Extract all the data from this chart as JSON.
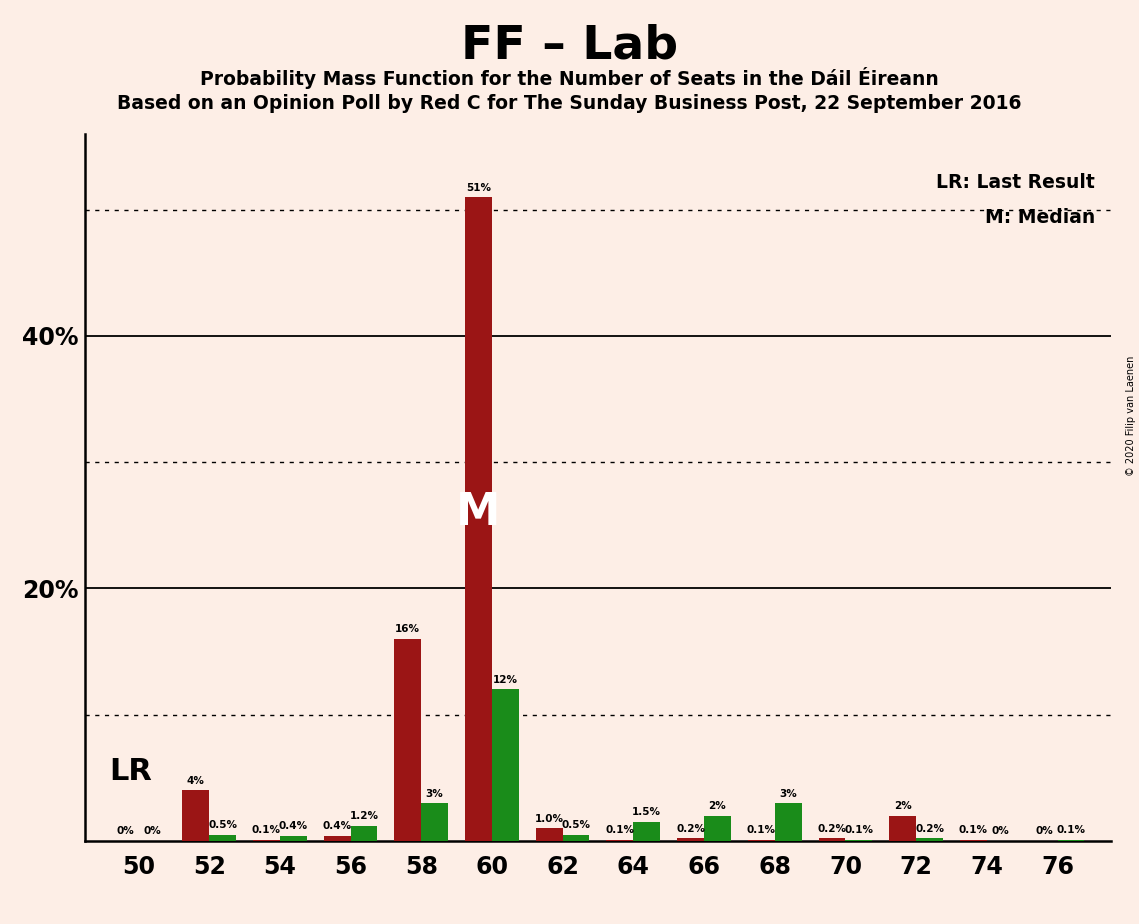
{
  "title": "FF – Lab",
  "subtitle1": "Probability Mass Function for the Number of Seats in the Dáil Éireann",
  "subtitle2": "Based on an Opinion Poll by Red C for The Sunday Business Post, 22 September 2016",
  "copyright": "© 2020 Filip van Laenen",
  "seats": [
    50,
    52,
    54,
    56,
    58,
    60,
    62,
    64,
    66,
    68,
    70,
    72,
    74,
    76
  ],
  "green_values": [
    0.0,
    0.5,
    0.4,
    1.2,
    3.0,
    12.0,
    0.5,
    1.5,
    2.0,
    3.0,
    0.1,
    0.2,
    0.0,
    0.1
  ],
  "red_values": [
    0.0,
    4.0,
    0.1,
    0.4,
    16.0,
    51.0,
    1.0,
    0.1,
    0.2,
    0.1,
    0.2,
    2.0,
    0.1,
    0.0
  ],
  "green_labels": [
    "0%",
    "0.5%",
    "0.4%",
    "1.2%",
    "3%",
    "12%",
    "0.5%",
    "1.5%",
    "2%",
    "3%",
    "0.1%",
    "0.2%",
    "0%",
    "0.1%"
  ],
  "red_labels": [
    "0%",
    "4%",
    "0.1%",
    "0.4%",
    "16%",
    "51%",
    "1.0%",
    "0.1%",
    "0.2%",
    "0.1%",
    "0.2%",
    "2%",
    "0.1%",
    "0%"
  ],
  "green_color": "#1a8c1a",
  "red_color": "#9b1515",
  "bg_color": "#fdeee6",
  "ylim": [
    0,
    56
  ],
  "median_seat": 60,
  "lr_label": "LR",
  "median_label": "M",
  "legend_lr": "LR: Last Result",
  "legend_m": "M: Median",
  "dotted_lines": [
    10,
    30,
    50
  ],
  "solid_lines": [
    20,
    40
  ],
  "bar_width": 0.38
}
